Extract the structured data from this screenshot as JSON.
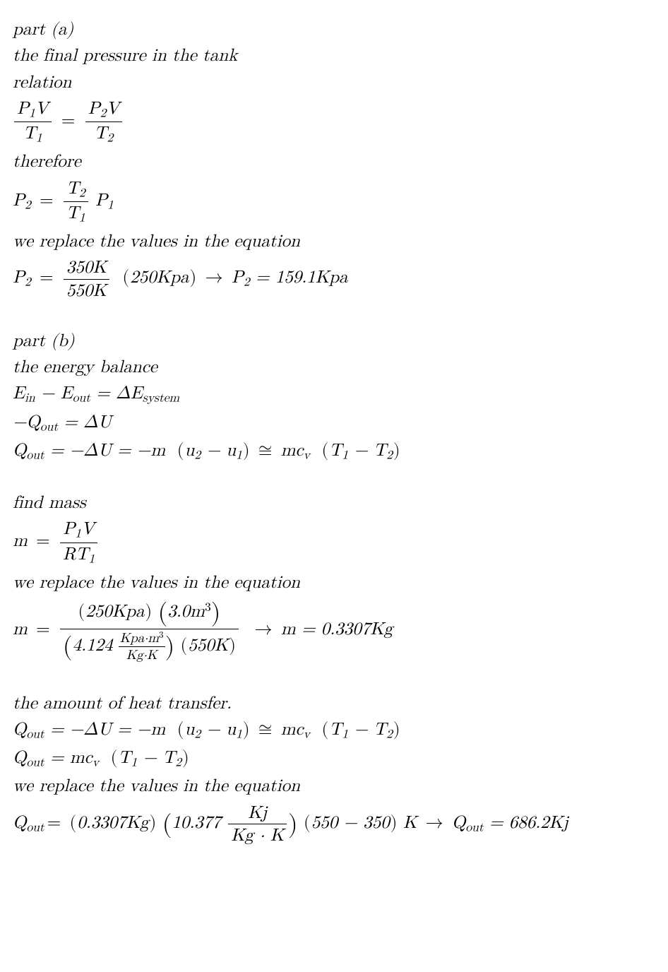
{
  "background_color": "#ffffff",
  "text_color": "#000000",
  "font_size_pt": 19,
  "font_family": "Latin Modern Math / Cambria Math (serif italic)",
  "partA": {
    "heading": "part (a)",
    "subtitle": "the final pressure in the tank",
    "relation_label": "relation",
    "relation_lhs_num": "P<sub>1</sub>V",
    "relation_lhs_den": "T<sub>1</sub>",
    "relation_rhs_num": "P<sub>2</sub>V",
    "relation_rhs_den": "T<sub>2</sub>",
    "therefore_label": "therefore",
    "p2_formula_lhs": "P<sub>2</sub>",
    "p2_formula_frac_num": "T<sub>2</sub>",
    "p2_formula_frac_den": "T<sub>1</sub>",
    "p2_formula_tail": "P<sub>1</sub>",
    "replace_label": "we replace the values in the equation",
    "p2_calc_frac_num": "350K",
    "p2_calc_frac_den": "550K",
    "p2_calc_paren": "250Kpa",
    "p2_result": "P<sub>2</sub> = 159.1Kpa"
  },
  "partB": {
    "heading": "part (b)",
    "energy_label": "the energy balance",
    "eb_line1": "E<sub>in</sub> − E<sub>out</sub> = ΔE<sub>system</sub>",
    "eb_line2": "−Q<sub>out</sub> = ΔU",
    "eb_line3_lhs": "Q<sub>out</sub> = −ΔU = −m",
    "eb_line3_paren1": "u<sub>2</sub> − u<sub>1</sub>",
    "eb_line3_cong": "≅",
    "eb_line3_rhs": "mc<sub>v</sub>",
    "eb_line3_paren2": "T<sub>1</sub> − T<sub>2</sub>",
    "find_mass_label": "find mass",
    "m_formula_lhs": "m",
    "m_formula_frac_num": "P<sub>1</sub>V",
    "m_formula_frac_den": "RT<sub>1</sub>",
    "replace_label2": "we replace the values in the equation",
    "m_calc_num_p1": "250Kpa",
    "m_calc_num_p2": "3.0m<sup>3</sup>",
    "m_calc_den_p1_num": "Kpa·m<sup>3</sup>",
    "m_calc_den_p1_den": "Kg·K",
    "m_calc_den_p1_coef": "4.124",
    "m_calc_den_p2": "550K",
    "m_result": "m = 0.3307Kg",
    "heat_label": "the amount of heat transfer.",
    "q_line1_lhs": "Q<sub>out</sub> = −ΔU = −m",
    "q_line1_paren1": "u<sub>2</sub> − u<sub>1</sub>",
    "q_line1_cong": "≅",
    "q_line1_rhs": "mc<sub>v</sub>",
    "q_line1_paren2": "T<sub>1</sub> − T<sub>2</sub>",
    "q_line2_lhs": "Q<sub>out</sub> = mc<sub>v</sub>",
    "q_line2_paren": "T<sub>1</sub> − T<sub>2</sub>",
    "replace_label3": "we replace the values in the equation",
    "q_calc_m": "0.3307Kg",
    "q_calc_cv_coef": "10.377",
    "q_calc_cv_num": "Kj",
    "q_calc_cv_den": "Kg · K",
    "q_calc_dT": "550 − 350",
    "q_calc_dT_unit": "K",
    "q_result": "Q<sub>out</sub> = 686.2Kj"
  }
}
